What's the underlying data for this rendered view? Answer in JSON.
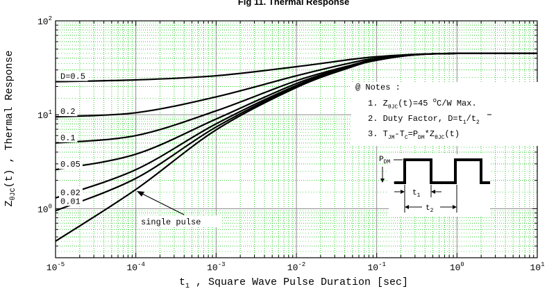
{
  "chart_data": {
    "type": "line",
    "title": "Fig 11. Thermal Response",
    "xlabel": "t₁ , Square Wave Pulse Duration [sec]",
    "ylabel": "ZθJC(t) , Thermal Response",
    "x_scale": "log",
    "y_scale": "log",
    "xlim": [
      1e-05,
      10
    ],
    "ylim": [
      0.3,
      100
    ],
    "x_ticks": [
      {
        "label_base": "10",
        "label_exp": "-5"
      },
      {
        "label_base": "10",
        "label_exp": "-4"
      },
      {
        "label_base": "10",
        "label_exp": "-3"
      },
      {
        "label_base": "10",
        "label_exp": "-2"
      },
      {
        "label_base": "10",
        "label_exp": "-1"
      },
      {
        "label_base": "10",
        "label_exp": "0"
      },
      {
        "label_base": "10",
        "label_exp": "1"
      }
    ],
    "y_ticks": [
      {
        "label_base": "10",
        "label_exp": "0"
      },
      {
        "label_base": "10",
        "label_exp": "1"
      },
      {
        "label_base": "10",
        "label_exp": "2"
      }
    ],
    "grid": true,
    "grid_color": "#22cc22",
    "line_color": "#000000",
    "series": [
      {
        "name": "D=0.5",
        "x": [
          1e-05,
          0.0001,
          0.001,
          0.01,
          0.05,
          0.1,
          0.3,
          1,
          10
        ],
        "y": [
          22.5,
          23.5,
          26,
          32.5,
          39,
          41.5,
          44,
          45,
          45
        ]
      },
      {
        "name": "0.2",
        "x": [
          1e-05,
          0.0001,
          0.001,
          0.01,
          0.05,
          0.1,
          0.3,
          1,
          10
        ],
        "y": [
          9.5,
          10.5,
          15.5,
          26,
          36,
          40,
          43.5,
          45,
          45
        ]
      },
      {
        "name": "0.1",
        "x": [
          1e-05,
          0.0001,
          0.001,
          0.01,
          0.05,
          0.1,
          0.3,
          1,
          10
        ],
        "y": [
          5,
          6,
          11,
          23,
          34,
          39,
          43.5,
          45,
          45
        ]
      },
      {
        "name": "0.05",
        "x": [
          1e-05,
          0.0001,
          0.001,
          0.01,
          0.05,
          0.1,
          0.3,
          1,
          10
        ],
        "y": [
          2.6,
          3.8,
          9,
          21.5,
          33.5,
          38.5,
          43.5,
          45,
          45
        ]
      },
      {
        "name": "0.02",
        "x": [
          1e-05,
          0.0001,
          0.001,
          0.01,
          0.05,
          0.1,
          0.3,
          1,
          10
        ],
        "y": [
          1.3,
          2.6,
          8,
          20.5,
          33,
          38.5,
          43.5,
          45,
          45
        ]
      },
      {
        "name": "0.01",
        "x": [
          1e-05,
          0.0001,
          0.001,
          0.01,
          0.05,
          0.1,
          0.3,
          1,
          10
        ],
        "y": [
          0.95,
          2.1,
          7.4,
          20,
          33,
          38.5,
          43.5,
          45,
          45
        ]
      },
      {
        "name": "single pulse",
        "x": [
          1e-05,
          0.0001,
          0.001,
          0.01,
          0.05,
          0.1,
          0.3,
          1,
          10
        ],
        "y": [
          0.45,
          1.6,
          6.9,
          19.5,
          32.5,
          38,
          43.5,
          45,
          45
        ]
      }
    ],
    "annotations": {
      "notes_title": "@ Notes :",
      "note1": "1. ZθJC(t)=45 °C/W Max.",
      "note2": "2. Duty Factor, D=t1/t2",
      "note3": "3. TJM-TC=PDM*ZθJC(t)",
      "pdm_label": "PDM",
      "t1_label": "t1",
      "t2_label": "t2",
      "single_pulse_label": "single pulse"
    }
  }
}
